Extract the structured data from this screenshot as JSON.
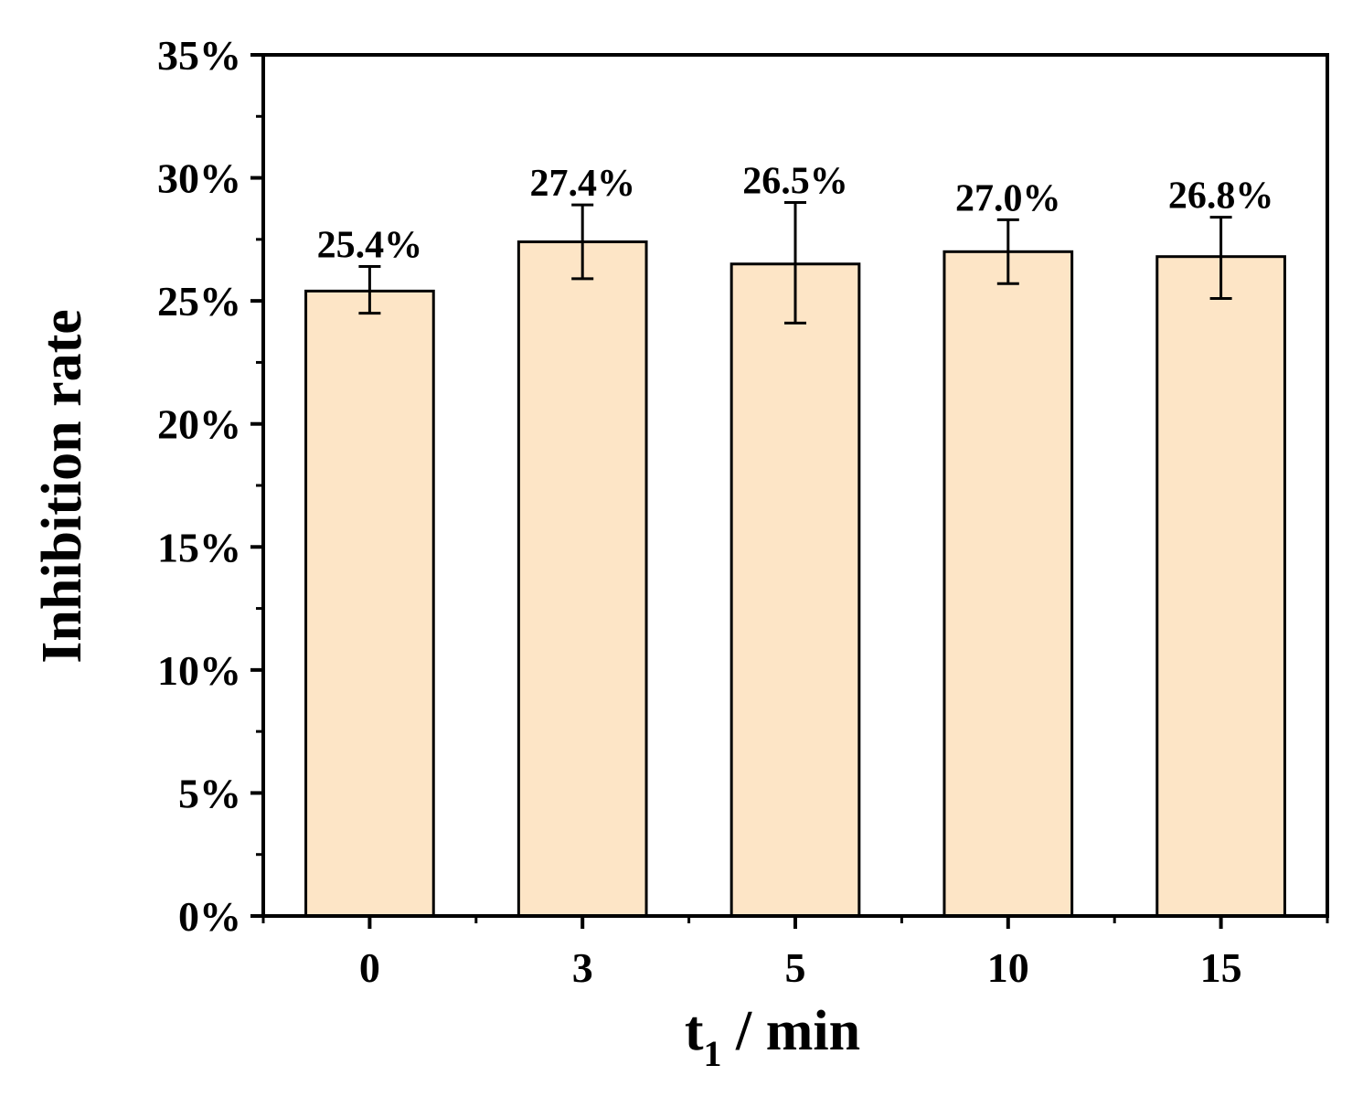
{
  "chart_data": {
    "type": "bar",
    "categories": [
      "0",
      "3",
      "5",
      "10",
      "15"
    ],
    "values": [
      25.4,
      27.4,
      26.5,
      27.0,
      26.8
    ],
    "error_bars": [
      {
        "low": 24.5,
        "high": 26.4
      },
      {
        "low": 25.9,
        "high": 28.9
      },
      {
        "low": 24.1,
        "high": 29.0
      },
      {
        "low": 25.7,
        "high": 28.3
      },
      {
        "low": 25.1,
        "high": 28.4
      }
    ],
    "data_labels": [
      "25.4%",
      "27.4%",
      "26.5%",
      "27.0%",
      "26.8%"
    ],
    "title": "",
    "xlabel": {
      "main": "t",
      "subscript": "1",
      "rest": " / min"
    },
    "ylabel": "Inhibition rate",
    "ylim": [
      0,
      35
    ],
    "yticks": [
      0,
      5,
      10,
      15,
      20,
      25,
      30,
      35
    ],
    "ytick_labels": [
      "0%",
      "5%",
      "10%",
      "15%",
      "20%",
      "25%",
      "30%",
      "35%"
    ],
    "grid": false,
    "colors": {
      "bar_fill": "#fde5c6",
      "bar_stroke": "#000000"
    }
  }
}
